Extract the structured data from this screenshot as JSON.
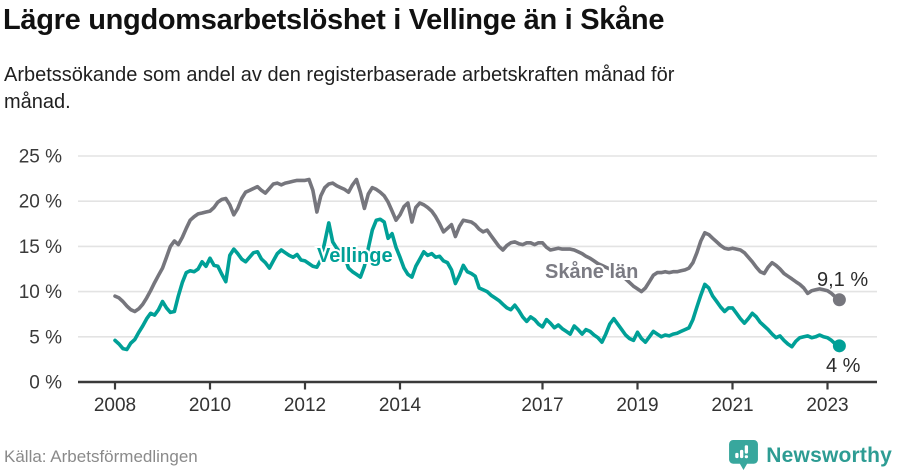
{
  "header": {
    "title": "Lägre ungdomsarbetslöshet i Vellinge än i Skåne",
    "subtitle_lines": [
      "Arbetssökande som andel av den registerbaserade arbetskraften månad för",
      "månad."
    ]
  },
  "chart_data": {
    "type": "line",
    "title": "Lägre ungdomsarbetslöshet i Vellinge än i Skåne",
    "x_range_years": [
      2008,
      2023.33
    ],
    "x_start": {
      "year": 2008,
      "month": 1
    },
    "x_tick_years": [
      2008,
      2010,
      2012,
      2014,
      2017,
      2019,
      2021,
      2023
    ],
    "ylim": [
      0,
      25
    ],
    "grid": true,
    "y_ticks": [
      {
        "value": 25,
        "label": "25 %"
      },
      {
        "value": 20,
        "label": "20 %"
      },
      {
        "value": 15,
        "label": "15 %"
      },
      {
        "value": 10,
        "label": "10 %"
      },
      {
        "value": 5,
        "label": "5 %"
      },
      {
        "value": 0,
        "label": "0 %"
      }
    ],
    "series": [
      {
        "name": "Skåne län",
        "slug": "skane-lan",
        "color": "#76767d",
        "label_color": "#7b7b83",
        "end_label": "9,1 %",
        "end_value": 9.1,
        "values": [
          9.5,
          9.3,
          8.9,
          8.4,
          8.0,
          7.8,
          8.1,
          8.6,
          9.3,
          10.1,
          11.0,
          11.8,
          12.6,
          13.8,
          15.0,
          15.6,
          15.2,
          16.0,
          17.0,
          17.9,
          18.3,
          18.6,
          18.7,
          18.8,
          18.9,
          19.3,
          19.9,
          20.2,
          20.3,
          19.6,
          18.5,
          19.2,
          20.3,
          21.0,
          21.2,
          21.4,
          21.6,
          21.2,
          20.9,
          21.4,
          21.9,
          22.0,
          21.8,
          22.0,
          22.1,
          22.2,
          22.3,
          22.3,
          22.3,
          22.4,
          21.2,
          18.8,
          20.6,
          21.5,
          21.9,
          22.0,
          21.7,
          21.5,
          21.3,
          21.0,
          21.8,
          22.4,
          21.0,
          19.2,
          20.8,
          21.5,
          21.3,
          21.0,
          20.6,
          19.9,
          18.9,
          17.9,
          18.5,
          19.4,
          19.8,
          17.7,
          19.3,
          19.8,
          19.6,
          19.3,
          18.9,
          18.3,
          17.5,
          16.6,
          17.0,
          17.4,
          16.1,
          17.2,
          17.9,
          17.8,
          17.7,
          17.4,
          16.9,
          16.6,
          16.8,
          16.2,
          15.6,
          15.0,
          14.6,
          15.1,
          15.4,
          15.5,
          15.3,
          15.2,
          15.4,
          15.4,
          15.2,
          15.4,
          15.4,
          14.9,
          14.6,
          14.7,
          14.8,
          14.7,
          14.7,
          14.7,
          14.6,
          14.4,
          14.2,
          13.9,
          13.7,
          13.4,
          13.1,
          12.9,
          12.7,
          12.5,
          12.2,
          12.0,
          11.7,
          11.4,
          11.0,
          10.6,
          10.3,
          10.0,
          10.4,
          11.1,
          11.8,
          12.1,
          12.1,
          12.2,
          12.1,
          12.2,
          12.2,
          12.3,
          12.4,
          12.6,
          13.2,
          14.3,
          15.6,
          16.5,
          16.3,
          15.9,
          15.5,
          15.1,
          14.8,
          14.7,
          14.8,
          14.7,
          14.6,
          14.3,
          13.8,
          13.3,
          12.7,
          12.2,
          12.0,
          12.7,
          13.2,
          12.9,
          12.5,
          12.0,
          11.7,
          11.4,
          11.1,
          10.8,
          10.4,
          9.8,
          10.1,
          10.2,
          10.3,
          10.2,
          10.1,
          9.8,
          9.4,
          9.1
        ]
      },
      {
        "name": "Vellinge",
        "slug": "vellinge",
        "color": "#00a097",
        "label_color": "#00a097",
        "end_label": "4 %",
        "end_value": 4.0,
        "values": [
          4.6,
          4.2,
          3.7,
          3.6,
          4.3,
          4.7,
          5.5,
          6.2,
          7.0,
          7.6,
          7.4,
          8.0,
          8.9,
          8.2,
          7.7,
          7.8,
          9.5,
          11.0,
          12.1,
          12.3,
          12.2,
          12.5,
          13.3,
          12.8,
          13.7,
          12.9,
          12.8,
          11.9,
          11.1,
          14.0,
          14.7,
          14.2,
          13.6,
          13.3,
          13.8,
          14.3,
          14.4,
          13.6,
          13.2,
          12.6,
          13.4,
          14.2,
          14.6,
          14.3,
          14.0,
          13.8,
          14.1,
          13.5,
          13.4,
          13.1,
          12.8,
          12.7,
          13.5,
          15.5,
          17.6,
          15.5,
          14.8,
          14.3,
          13.9,
          12.6,
          12.2,
          11.9,
          11.6,
          12.8,
          14.8,
          16.8,
          17.9,
          18.0,
          17.7,
          15.9,
          16.4,
          14.9,
          13.8,
          12.6,
          11.9,
          11.6,
          12.8,
          13.6,
          14.4,
          14.0,
          14.2,
          13.8,
          13.9,
          13.4,
          13.2,
          12.4,
          10.9,
          11.8,
          12.9,
          12.2,
          12.0,
          11.7,
          10.4,
          10.2,
          10.0,
          9.6,
          9.3,
          9.0,
          8.6,
          8.2,
          8.0,
          8.5,
          7.9,
          7.2,
          6.7,
          7.2,
          6.9,
          6.4,
          6.1,
          6.9,
          6.5,
          6.0,
          6.3,
          5.9,
          5.6,
          5.3,
          6.2,
          5.8,
          5.3,
          5.8,
          5.6,
          5.2,
          4.9,
          4.4,
          5.3,
          6.4,
          7.0,
          6.4,
          5.8,
          5.2,
          4.8,
          4.6,
          5.5,
          4.8,
          4.4,
          5.0,
          5.6,
          5.3,
          5.0,
          5.2,
          5.1,
          5.3,
          5.4,
          5.6,
          5.8,
          6.0,
          6.9,
          8.3,
          9.6,
          10.8,
          10.4,
          9.5,
          8.9,
          8.3,
          7.8,
          8.2,
          8.2,
          7.6,
          7.0,
          6.5,
          7.0,
          7.6,
          7.2,
          6.6,
          6.2,
          5.8,
          5.3,
          4.9,
          5.1,
          4.6,
          4.2,
          3.9,
          4.5,
          4.9,
          5.0,
          5.1,
          4.9,
          5.0,
          5.2,
          5.0,
          4.9,
          4.6,
          4.2,
          4.0
        ]
      }
    ]
  },
  "footer": {
    "source": "Källa: Arbetsförmedlingen",
    "brand_name": "Newsworthy",
    "brand_color": "#2d9c93",
    "brand_icon_color": "#38a79d"
  }
}
